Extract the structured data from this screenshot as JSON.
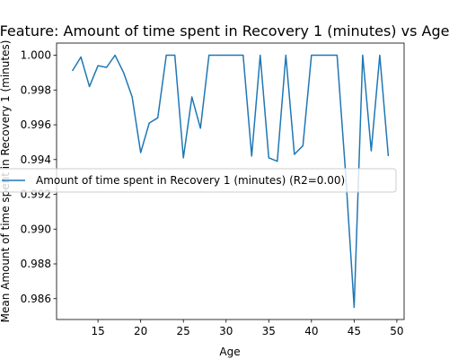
{
  "chart_data": {
    "type": "line",
    "title": "Feature: Amount of time spent in Recovery 1 (minutes) vs Age",
    "xlabel": "Age",
    "ylabel": "Mean Amount of time spent in Recovery 1 (minutes)",
    "xlim": [
      10.15,
      50.85
    ],
    "ylim": [
      0.9848,
      1.0007
    ],
    "xticks": [
      15,
      20,
      25,
      30,
      35,
      40,
      45,
      50
    ],
    "yticks": [
      0.986,
      0.988,
      0.99,
      0.992,
      0.994,
      0.996,
      0.998,
      1.0
    ],
    "ytick_labels": [
      "0.986",
      "0.988",
      "0.990",
      "0.992",
      "0.994",
      "0.996",
      "0.998",
      "1.000"
    ],
    "grid": false,
    "legend_position": "center-right",
    "colors": {
      "series": "#1f77b4"
    },
    "series": [
      {
        "name": "Amount of time spent in Recovery 1 (minutes) (R2=0.00)",
        "x": [
          12,
          13,
          14,
          15,
          16,
          17,
          18,
          19,
          20,
          21,
          22,
          23,
          24,
          25,
          26,
          27,
          28,
          29,
          30,
          31,
          32,
          33,
          34,
          35,
          36,
          37,
          38,
          39,
          40,
          41,
          42,
          43,
          44,
          45,
          46,
          47,
          48,
          49
        ],
        "y": [
          0.9991,
          0.9999,
          0.9982,
          0.9994,
          0.9993,
          1.0,
          0.999,
          0.9976,
          0.9944,
          0.9961,
          0.9964,
          1.0,
          1.0,
          0.9941,
          0.9976,
          0.9958,
          1.0,
          1.0,
          1.0,
          1.0,
          1.0,
          0.9942,
          1.0,
          0.9941,
          0.9939,
          1.0,
          0.9943,
          0.9948,
          1.0,
          1.0,
          1.0,
          1.0,
          0.9932,
          0.9855,
          1.0,
          0.9945,
          1.0,
          0.9942
        ]
      }
    ]
  }
}
